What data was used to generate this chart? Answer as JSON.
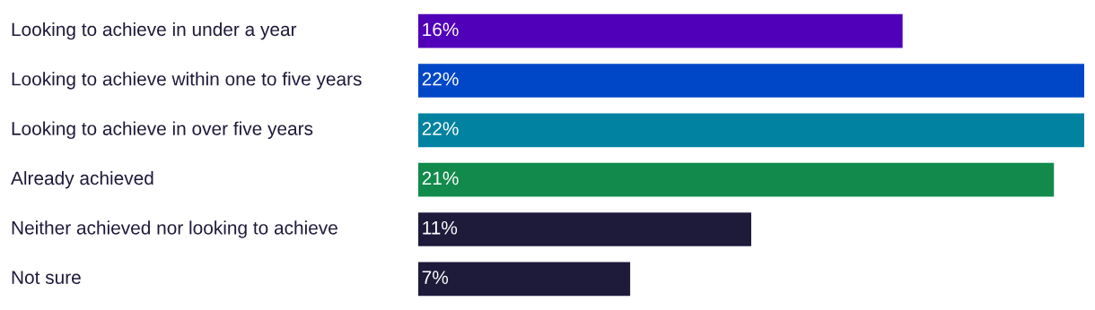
{
  "chart_data": {
    "type": "bar",
    "orientation": "horizontal",
    "categories": [
      "Looking to achieve in under a year",
      "Looking to achieve within one to five years",
      "Looking to achieve in over five years",
      "Already achieved",
      "Neither achieved nor looking to achieve",
      "Not sure"
    ],
    "values": [
      16,
      22,
      22,
      21,
      11,
      7
    ],
    "value_labels": [
      "16%",
      "22%",
      "22%",
      "21%",
      "11%",
      "7%"
    ],
    "colors": [
      "#5000b8",
      "#0047c8",
      "#0082a0",
      "#128a4c",
      "#1e1a3a",
      "#1e1a3a"
    ]
  }
}
